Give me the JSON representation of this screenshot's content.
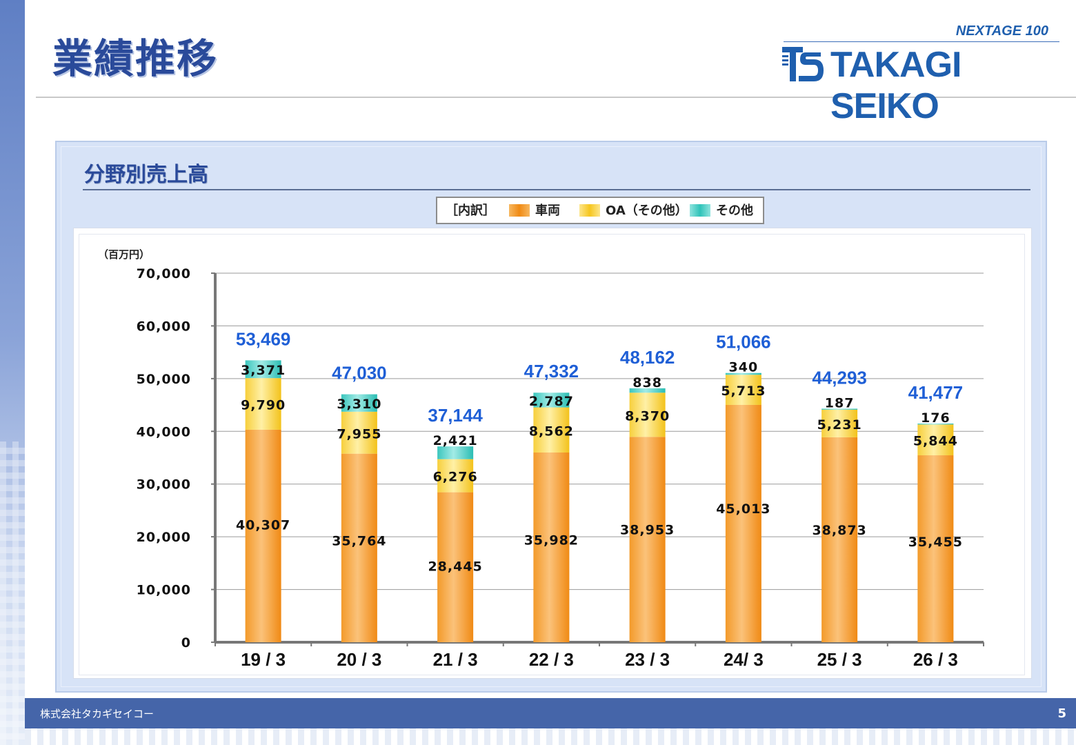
{
  "page": {
    "title": "業績推移",
    "company": "株式会社タカギセイコー",
    "page_number": "5"
  },
  "logo": {
    "tagline": "NEXTAGE 100",
    "name": "TAKAGI SEIKO"
  },
  "section": {
    "title": "分野別売上高"
  },
  "legend": {
    "header": "［内訳］",
    "items": [
      {
        "label": "車両",
        "color": "#f4a23c"
      },
      {
        "label": "OA（その他）",
        "color": "#f9d54a"
      },
      {
        "label": "その他",
        "color": "#4ecfc6"
      }
    ]
  },
  "chart_data": {
    "type": "bar",
    "stacked": true,
    "unit_label": "（百万円）",
    "categories": [
      "19 / 3",
      "20 / 3",
      "21 / 3",
      "22 / 3",
      "23 / 3",
      "24/ 3",
      "25 / 3",
      "26 / 3"
    ],
    "series": [
      {
        "name": "車両",
        "values": [
          40307,
          35764,
          28445,
          35982,
          38953,
          45013,
          38873,
          35455
        ]
      },
      {
        "name": "OA（その他）",
        "values": [
          9790,
          7955,
          6276,
          8562,
          8370,
          5713,
          5231,
          5844
        ]
      },
      {
        "name": "その他",
        "values": [
          3371,
          3310,
          2421,
          2787,
          838,
          340,
          187,
          176
        ]
      }
    ],
    "value_labels": [
      [
        "40,307",
        "35,764",
        "28,445",
        "35,982",
        "38,953",
        "45,013",
        "38,873",
        "35,455"
      ],
      [
        "9,790",
        "7,955",
        "6,276",
        "8,562",
        "8,370",
        "5,713",
        "5,231",
        "5,844"
      ],
      [
        "3,371",
        "3,310",
        "2,421",
        "2,787",
        "838",
        "340",
        "187",
        "176"
      ]
    ],
    "totals": [
      53469,
      47030,
      37144,
      47332,
      48162,
      51066,
      44293,
      41477
    ],
    "total_labels": [
      "53,469",
      "47,030",
      "37,144",
      "47,332",
      "48,162",
      "51,066",
      "44,293",
      "41,477"
    ],
    "y_ticks": [
      0,
      10000,
      20000,
      30000,
      40000,
      50000,
      60000,
      70000
    ],
    "y_tick_labels": [
      "0",
      "10,000",
      "20,000",
      "30,000",
      "40,000",
      "50,000",
      "60,000",
      "70,000"
    ],
    "ylim": [
      0,
      70000
    ],
    "grid": true,
    "colors": {
      "vehicle": "#f4a23c",
      "oa": "#f9d54a",
      "other": "#4ecfc6",
      "total_label": "#1f5fd6"
    }
  }
}
